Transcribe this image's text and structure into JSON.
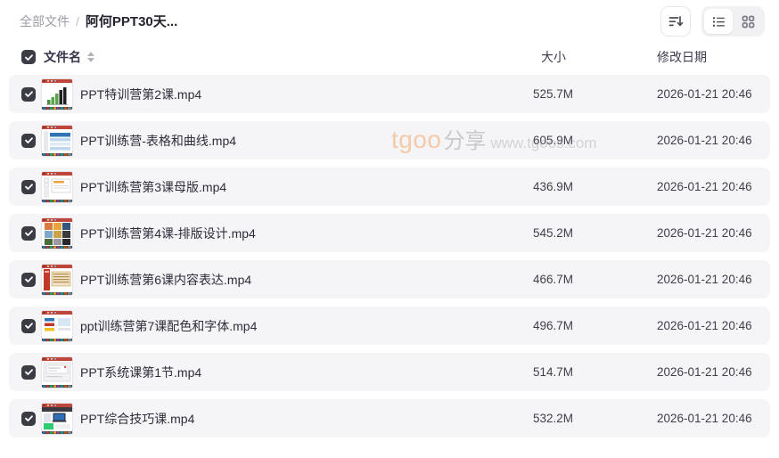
{
  "breadcrumb": {
    "root": "全部文件",
    "separator": "/",
    "current": "阿何PPT30天..."
  },
  "toolbar": {
    "icons": {
      "sort": "sort-descending-icon",
      "list_view": "list-view-icon",
      "grid_view": "grid-view-icon"
    },
    "active_view": "list"
  },
  "table": {
    "select_all_checked": true,
    "columns": {
      "name": "文件名",
      "size": "大小",
      "modified": "修改日期"
    },
    "rows": [
      {
        "name": "PPT特训营第2课.mp4",
        "size": "525.7M",
        "modified": "2026-01-21 20:46",
        "checked": true,
        "thumb": "chart"
      },
      {
        "name": "PPT训练营-表格和曲线.mp4",
        "size": "605.9M",
        "modified": "2026-01-21 20:46",
        "checked": true,
        "thumb": "table"
      },
      {
        "name": "PPT训练营第3课母版.mp4",
        "size": "436.9M",
        "modified": "2026-01-21 20:46",
        "checked": true,
        "thumb": "master"
      },
      {
        "name": "PPT训练营第4课-排版设计.mp4",
        "size": "545.2M",
        "modified": "2026-01-21 20:46",
        "checked": true,
        "thumb": "collage"
      },
      {
        "name": "PPT训练营第6课内容表达.mp4",
        "size": "466.7M",
        "modified": "2026-01-21 20:46",
        "checked": true,
        "thumb": "content"
      },
      {
        "name": "ppt训练营第7课配色和字体.mp4",
        "size": "496.7M",
        "modified": "2026-01-21 20:46",
        "checked": true,
        "thumb": "colors"
      },
      {
        "name": "PPT系统课第1节.mp4",
        "size": "514.7M",
        "modified": "2026-01-21 20:46",
        "checked": true,
        "thumb": "system"
      },
      {
        "name": "PPT综合技巧课.mp4",
        "size": "532.2M",
        "modified": "2026-01-21 20:46",
        "checked": true,
        "thumb": "laptop"
      }
    ]
  },
  "watermark": {
    "brand": "tgoo",
    "share_label": "分享",
    "url": "www.tgoos.com"
  },
  "colors": {
    "row_bg": "#f5f5f7",
    "checkbox": "#3c3c45",
    "ribbon_red": "#c0453a",
    "watermark_brand": "#f4c198"
  }
}
